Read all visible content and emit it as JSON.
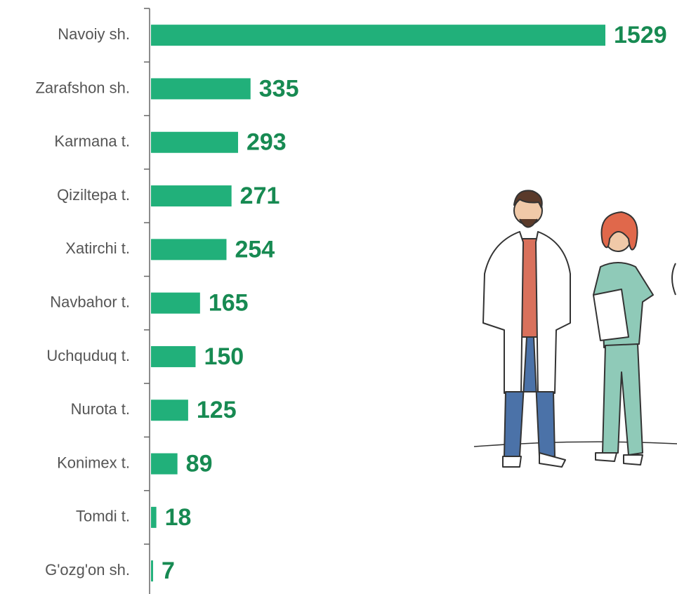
{
  "chart_data": {
    "type": "bar",
    "orientation": "horizontal",
    "categories": [
      "Navoiy sh.",
      "Zarafshon sh.",
      "Karmana t.",
      "Qiziltepa t.",
      "Xatirchi t.",
      "Navbahor t.",
      "Uchquduq t.",
      "Nurota t.",
      "Konimex t.",
      "Tomdi t.",
      "G'ozg'on sh."
    ],
    "values": [
      1529,
      335,
      293,
      271,
      254,
      165,
      150,
      125,
      89,
      18,
      7
    ],
    "color": "#21b07a",
    "label_color": "#178a52"
  }
}
